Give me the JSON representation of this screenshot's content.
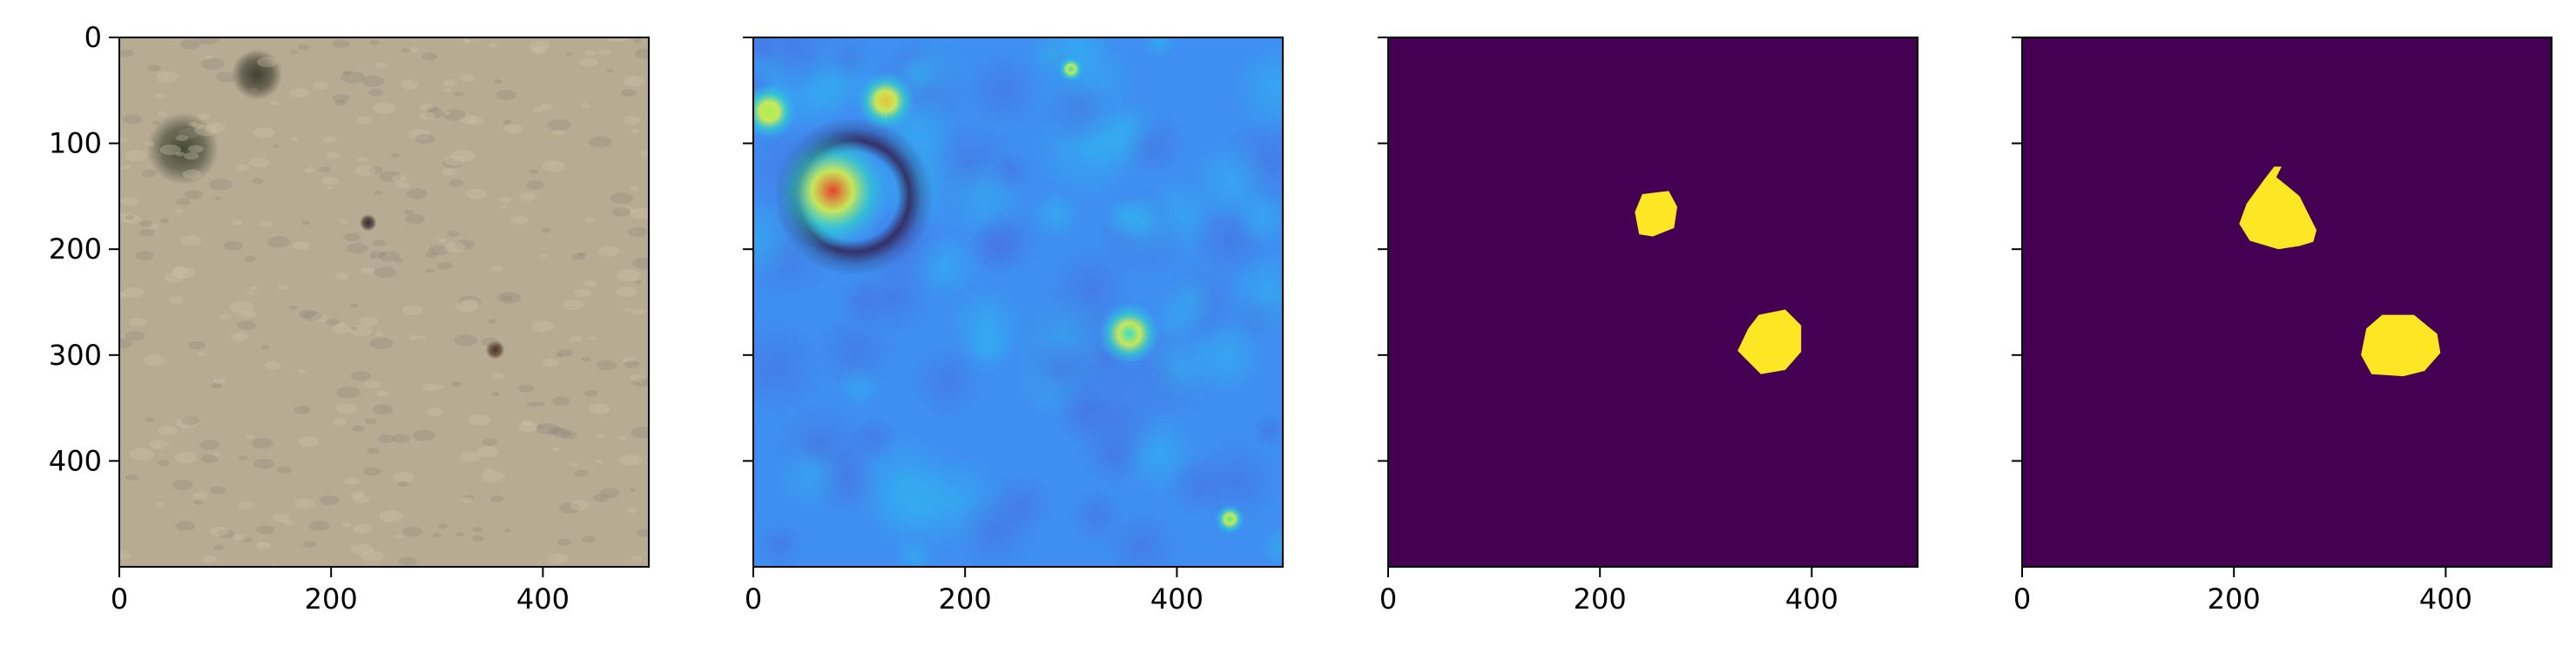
{
  "chart_data": [
    {
      "type": "image",
      "panel": "input-image",
      "colormap": "rgb-photo",
      "xlim": [
        0,
        500
      ],
      "ylim": [
        500,
        0
      ],
      "xticks": [
        0,
        200,
        400
      ],
      "yticks": [
        0,
        100,
        200,
        300,
        400
      ],
      "ytick_labels_shown": true,
      "content": {
        "base_color": "#b8ab94",
        "dark_patches": [
          {
            "x": 130,
            "y": 35,
            "r": 24,
            "color": "#3a3a2c"
          },
          {
            "x": 60,
            "y": 105,
            "r": 34,
            "color": "#3f4533"
          },
          {
            "x": 235,
            "y": 175,
            "r": 8,
            "color": "#2c2620"
          },
          {
            "x": 355,
            "y": 295,
            "r": 9,
            "color": "#4a2a22"
          }
        ]
      }
    },
    {
      "type": "heatmap",
      "panel": "heatmap",
      "colormap": "turbo",
      "xlim": [
        0,
        500
      ],
      "ylim": [
        500,
        0
      ],
      "xticks": [
        0,
        200,
        400
      ],
      "yticks": [
        0,
        100,
        200,
        300,
        400
      ],
      "ytick_labels_shown": false,
      "content": {
        "base_color": "#3e8ff1",
        "hotspots": [
          {
            "x": 75,
            "y": 145,
            "r": 55,
            "peak_color": "#e6402b"
          },
          {
            "x": 125,
            "y": 60,
            "r": 28,
            "peak_color": "#e7c23b"
          },
          {
            "x": 15,
            "y": 70,
            "r": 26,
            "peak_color": "#a8f050"
          },
          {
            "x": 300,
            "y": 30,
            "r": 12,
            "peak_color": "#36dfc2"
          },
          {
            "x": 355,
            "y": 280,
            "r": 30,
            "peak_color": "#36dfc2"
          },
          {
            "x": 450,
            "y": 455,
            "r": 14,
            "peak_color": "#46f08e"
          }
        ],
        "cold_spots": [
          {
            "x": 95,
            "y": 150,
            "r": 75,
            "color": "#30123b"
          }
        ]
      }
    },
    {
      "type": "mask",
      "panel": "mask-prediction",
      "colormap": "viridis",
      "xlim": [
        0,
        500
      ],
      "ylim": [
        500,
        0
      ],
      "xticks": [
        0,
        200,
        400
      ],
      "yticks": [
        0,
        100,
        200,
        300,
        400
      ],
      "ytick_labels_shown": false,
      "background_color": "#440154",
      "foreground_color": "#fde725",
      "regions": [
        [
          [
            240,
            148
          ],
          [
            265,
            145
          ],
          [
            273,
            160
          ],
          [
            270,
            180
          ],
          [
            250,
            188
          ],
          [
            237,
            186
          ],
          [
            233,
            165
          ]
        ],
        [
          [
            350,
            262
          ],
          [
            375,
            257
          ],
          [
            390,
            272
          ],
          [
            390,
            297
          ],
          [
            375,
            314
          ],
          [
            352,
            318
          ],
          [
            330,
            296
          ],
          [
            340,
            275
          ]
        ]
      ]
    },
    {
      "type": "mask",
      "panel": "mask-ground-truth",
      "colormap": "viridis",
      "xlim": [
        0,
        500
      ],
      "ylim": [
        500,
        0
      ],
      "xticks": [
        0,
        200,
        400
      ],
      "yticks": [
        0,
        100,
        200,
        300,
        400
      ],
      "ytick_labels_shown": false,
      "background_color": "#440154",
      "foreground_color": "#fde725",
      "regions": [
        [
          [
            238,
            122
          ],
          [
            245,
            122
          ],
          [
            240,
            132
          ],
          [
            250,
            140
          ],
          [
            262,
            150
          ],
          [
            278,
            182
          ],
          [
            275,
            193
          ],
          [
            262,
            197
          ],
          [
            242,
            200
          ],
          [
            215,
            192
          ],
          [
            205,
            176
          ],
          [
            212,
            157
          ],
          [
            228,
            135
          ]
        ],
        [
          [
            340,
            262
          ],
          [
            370,
            262
          ],
          [
            392,
            280
          ],
          [
            395,
            298
          ],
          [
            380,
            315
          ],
          [
            360,
            320
          ],
          [
            330,
            318
          ],
          [
            320,
            300
          ],
          [
            325,
            275
          ]
        ]
      ]
    }
  ]
}
